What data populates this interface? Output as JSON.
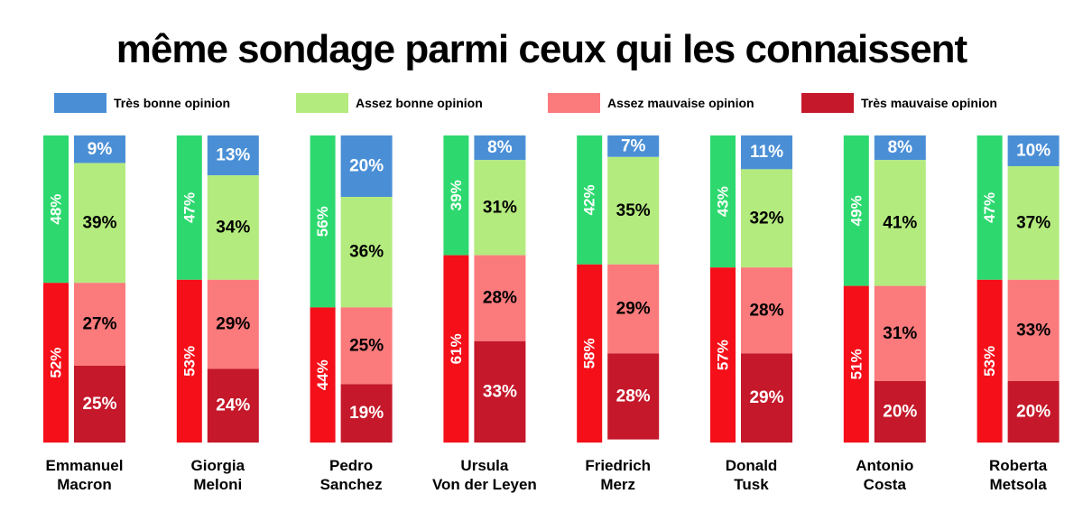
{
  "title": "même sondage parmi ceux qui les connaissent",
  "colors": {
    "tres_bonne": "#4A8FD6",
    "assez_bonne": "#B4EB7E",
    "assez_mauvaise": "#FB7A7C",
    "tres_mauvaise": "#C5182A",
    "total_bonne": "#2DD96E",
    "total_mauvaise": "#F40F19"
  },
  "legend": [
    {
      "label": "Très bonne opinion",
      "color": "#4A8FD6"
    },
    {
      "label": "Assez bonne opinion",
      "color": "#B4EB7E"
    },
    {
      "label": "Assez mauvaise opinion",
      "color": "#FB7A7C"
    },
    {
      "label": "Très mauvaise opinion",
      "color": "#C5182A"
    }
  ],
  "chart_data": {
    "type": "bar",
    "stacked": true,
    "categories": [
      "Emmanuel\nMacron",
      "Giorgia\nMeloni",
      "Pedro\nSanchez",
      "Ursula\nVon der Leyen",
      "Friedrich\nMerz",
      "Donald\nTusk",
      "Antonio\nCosta",
      "Roberta\nMetsola"
    ],
    "series": [
      {
        "name": "Très bonne opinion",
        "values": [
          9,
          13,
          20,
          8,
          7,
          11,
          8,
          10
        ]
      },
      {
        "name": "Assez bonne opinion",
        "values": [
          39,
          34,
          36,
          31,
          35,
          32,
          41,
          37
        ]
      },
      {
        "name": "Assez mauvaise opinion",
        "values": [
          27,
          29,
          25,
          28,
          29,
          28,
          31,
          33
        ]
      },
      {
        "name": "Très mauvaise opinion",
        "values": [
          25,
          24,
          19,
          33,
          28,
          29,
          20,
          20
        ]
      }
    ],
    "totals": {
      "bonne": [
        48,
        47,
        56,
        39,
        42,
        43,
        49,
        47
      ],
      "mauvaise": [
        52,
        53,
        44,
        61,
        58,
        57,
        51,
        53
      ]
    },
    "ylim": [
      0,
      100
    ],
    "legend_position": "top",
    "grid": false
  }
}
